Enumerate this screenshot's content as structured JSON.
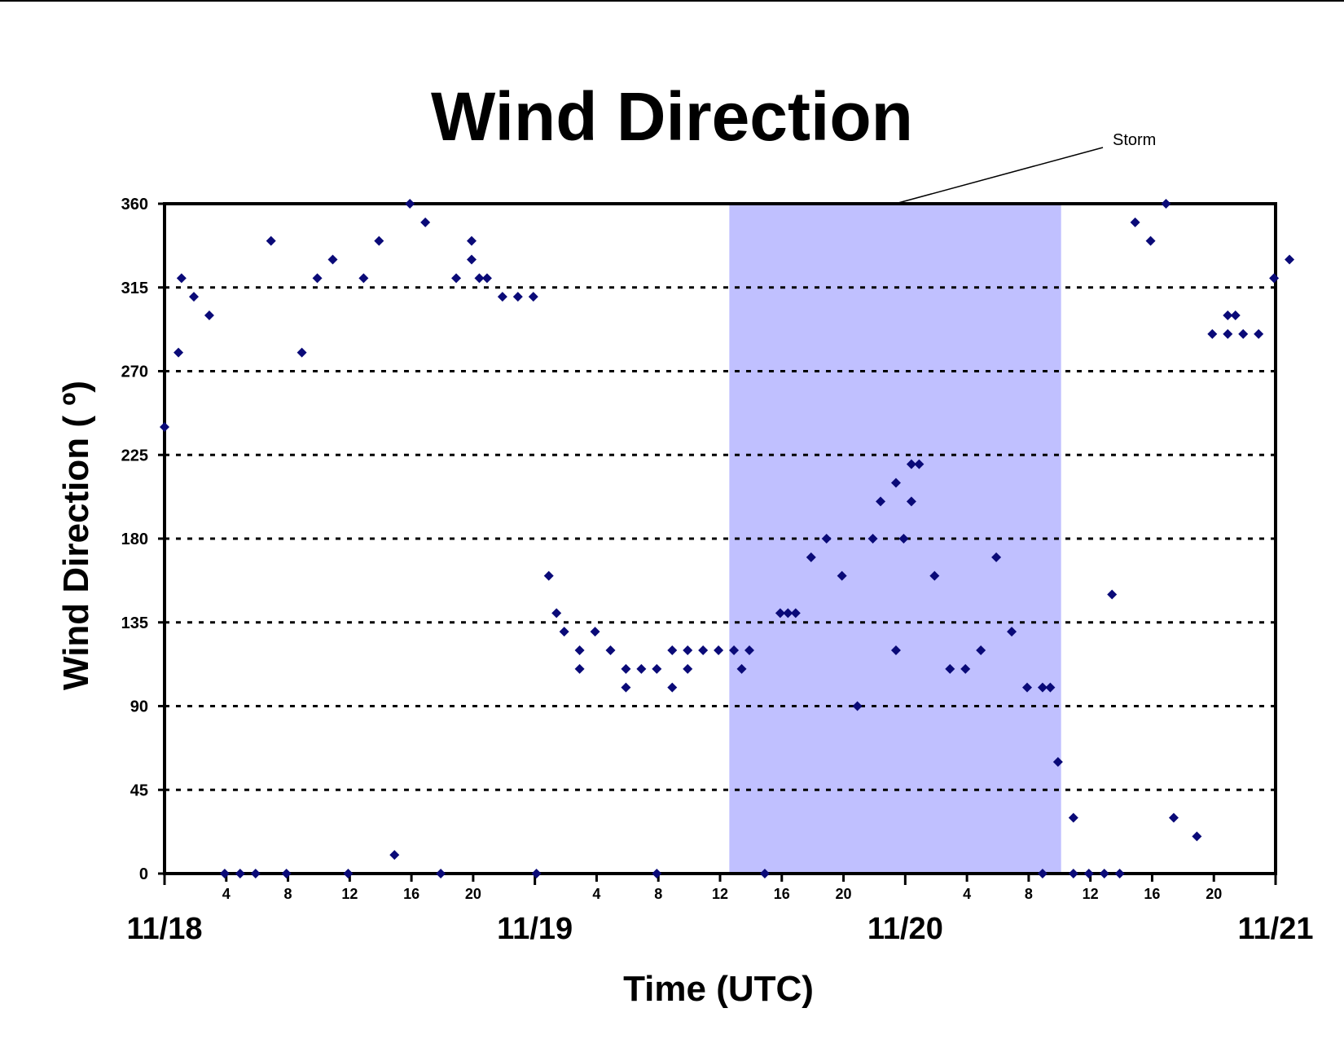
{
  "chart_data": {
    "type": "scatter",
    "title": "Wind Direction",
    "xlabel": "Time (UTC)",
    "ylabel": "Wind Direction ( º)",
    "x_unit": "hours (UTC) from 11/18 00:00",
    "xlim": [
      0,
      72
    ],
    "ylim": [
      0,
      360
    ],
    "y_ticks": [
      0,
      45,
      90,
      135,
      180,
      225,
      270,
      315,
      360
    ],
    "y_grid": "dotted",
    "x_tick_labels": [
      {
        "x": 4,
        "label": "4"
      },
      {
        "x": 8,
        "label": "8"
      },
      {
        "x": 12,
        "label": "12"
      },
      {
        "x": 16,
        "label": "16"
      },
      {
        "x": 20,
        "label": "20"
      },
      {
        "x": 28,
        "label": "4"
      },
      {
        "x": 32,
        "label": "8"
      },
      {
        "x": 36,
        "label": "12"
      },
      {
        "x": 40,
        "label": "16"
      },
      {
        "x": 44,
        "label": "20"
      },
      {
        "x": 52,
        "label": "4"
      },
      {
        "x": 56,
        "label": "8"
      },
      {
        "x": 60,
        "label": "12"
      },
      {
        "x": 64,
        "label": "16"
      },
      {
        "x": 68,
        "label": "20"
      }
    ],
    "day_labels": [
      {
        "x": 0,
        "label": "11/18"
      },
      {
        "x": 24,
        "label": "11/19"
      },
      {
        "x": 48,
        "label": "11/20"
      },
      {
        "x": 72,
        "label": "11/21"
      }
    ],
    "shaded_region": {
      "label": "Storm",
      "x_start": 36.6,
      "x_end": 58.1,
      "color": "#c0c0ff"
    },
    "marker_color": "#0a0a78",
    "series": [
      {
        "points": [
          [
            0,
            240
          ],
          [
            0.9,
            280
          ],
          [
            1.1,
            320
          ],
          [
            1.9,
            310
          ],
          [
            2.9,
            300
          ],
          [
            3.9,
            0
          ],
          [
            4.9,
            0
          ],
          [
            5.9,
            0
          ],
          [
            6.9,
            340
          ],
          [
            7.9,
            0
          ],
          [
            8.9,
            280
          ],
          [
            9.9,
            320
          ],
          [
            10.9,
            330
          ],
          [
            11.9,
            0
          ],
          [
            12.9,
            320
          ],
          [
            13.9,
            340
          ],
          [
            14.9,
            10
          ],
          [
            15.9,
            360
          ],
          [
            16.9,
            350
          ],
          [
            17.9,
            0
          ],
          [
            18.9,
            320
          ],
          [
            19.9,
            340
          ],
          [
            19.9,
            330
          ],
          [
            20.4,
            320
          ],
          [
            20.9,
            320
          ],
          [
            21.9,
            310
          ],
          [
            22.9,
            310
          ],
          [
            23.9,
            310
          ],
          [
            24.1,
            0
          ],
          [
            24.9,
            160
          ],
          [
            25.4,
            140
          ],
          [
            25.9,
            130
          ],
          [
            26.9,
            120
          ],
          [
            26.9,
            110
          ],
          [
            27.9,
            130
          ],
          [
            28.9,
            120
          ],
          [
            29.9,
            100
          ],
          [
            29.9,
            110
          ],
          [
            30.9,
            110
          ],
          [
            31.9,
            110
          ],
          [
            31.9,
            0
          ],
          [
            32.9,
            100
          ],
          [
            32.9,
            120
          ],
          [
            33.9,
            110
          ],
          [
            33.9,
            120
          ],
          [
            34.9,
            120
          ],
          [
            35.9,
            120
          ],
          [
            36.9,
            120
          ],
          [
            37.4,
            110
          ],
          [
            37.9,
            120
          ],
          [
            38.9,
            0
          ],
          [
            39.9,
            140
          ],
          [
            40.4,
            140
          ],
          [
            40.9,
            140
          ],
          [
            41.9,
            170
          ],
          [
            42.9,
            180
          ],
          [
            43.9,
            160
          ],
          [
            44.9,
            90
          ],
          [
            45.9,
            180
          ],
          [
            46.4,
            200
          ],
          [
            47.4,
            120
          ],
          [
            47.4,
            210
          ],
          [
            47.9,
            180
          ],
          [
            48.4,
            200
          ],
          [
            48.4,
            220
          ],
          [
            48.9,
            220
          ],
          [
            49.9,
            160
          ],
          [
            50.9,
            110
          ],
          [
            51.9,
            110
          ],
          [
            52.9,
            120
          ],
          [
            53.9,
            170
          ],
          [
            54.9,
            130
          ],
          [
            55.9,
            100
          ],
          [
            56.9,
            100
          ],
          [
            56.9,
            0
          ],
          [
            57.4,
            100
          ],
          [
            57.9,
            60
          ],
          [
            58.9,
            30
          ],
          [
            58.9,
            0
          ],
          [
            59.9,
            0
          ],
          [
            60.9,
            0
          ],
          [
            61.4,
            150
          ],
          [
            61.9,
            0
          ],
          [
            62.9,
            350
          ],
          [
            63.9,
            340
          ],
          [
            64.9,
            360
          ],
          [
            65.4,
            30
          ],
          [
            66.9,
            20
          ],
          [
            67.9,
            290
          ],
          [
            68.9,
            290
          ],
          [
            68.9,
            300
          ],
          [
            69.4,
            300
          ],
          [
            69.9,
            290
          ],
          [
            70.9,
            290
          ],
          [
            71.9,
            320
          ],
          [
            72.9,
            330
          ]
        ]
      }
    ]
  }
}
